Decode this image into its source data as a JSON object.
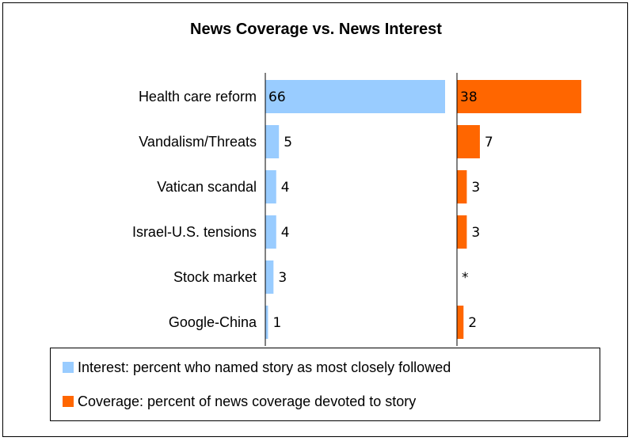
{
  "chart_data": {
    "type": "bar",
    "title": "News Coverage vs. News Interest",
    "categories": [
      "Health care reform",
      "Vandalism/Threats",
      "Vatican scandal",
      "Israel-U.S. tensions",
      "Stock market",
      "Google-China"
    ],
    "series": [
      {
        "name": "Interest: percent who named story as most closely followed",
        "values": [
          66,
          5,
          4,
          4,
          3,
          1
        ],
        "labels": [
          "66",
          "5",
          "4",
          "4",
          "3",
          "1"
        ],
        "color": "#99ccff"
      },
      {
        "name": "Coverage: percent of news coverage devoted to story",
        "values": [
          38,
          7,
          3,
          3,
          0,
          2
        ],
        "labels": [
          "38",
          "7",
          "3",
          "3",
          "*",
          "2"
        ],
        "color": "#ff6600"
      }
    ],
    "legend": "bottom",
    "grid": false
  }
}
